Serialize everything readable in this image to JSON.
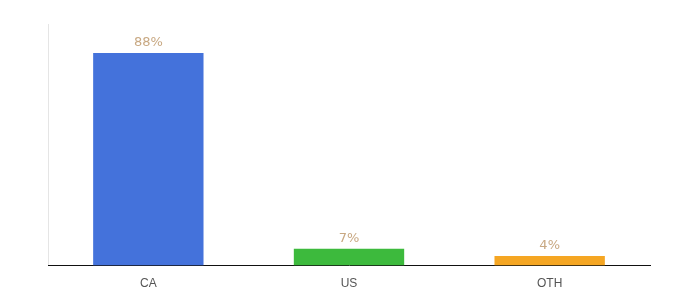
{
  "chart_data": {
    "type": "bar",
    "categories": [
      "CA",
      "US",
      "OTH"
    ],
    "values": [
      88,
      7,
      4
    ],
    "value_labels": [
      "88%",
      "7%",
      "4%"
    ],
    "colors": [
      "#4472db",
      "#3dba3d",
      "#f5a623"
    ],
    "ylim": [
      0,
      100
    ],
    "grid": false,
    "data_labels": true,
    "tick_labels": "x"
  }
}
